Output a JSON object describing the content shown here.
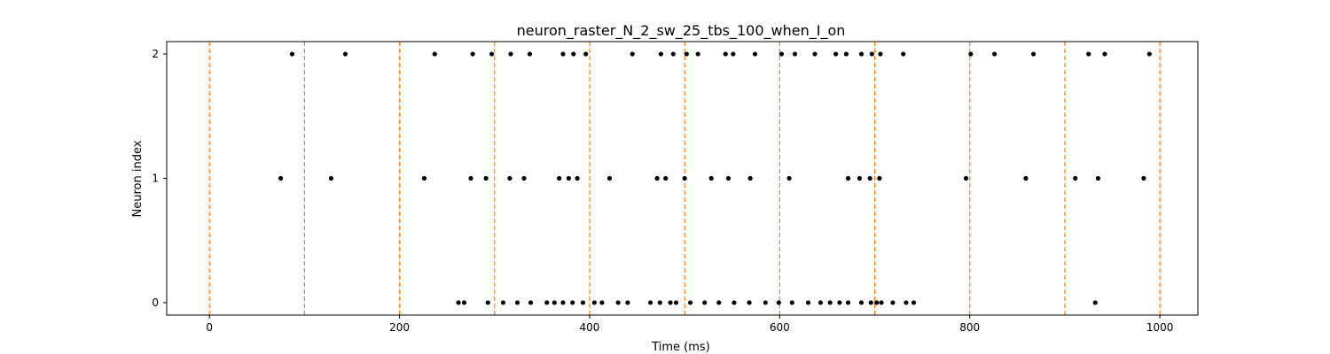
{
  "chart_data": {
    "type": "scatter",
    "title": "neuron_raster_N_2_sw_25_tbs_100_when_I_on",
    "xlabel": "Time (ms)",
    "ylabel": "Neuron index",
    "xlim": [
      -45,
      1040
    ],
    "ylim": [
      -0.1,
      2.1
    ],
    "xticks": [
      0,
      200,
      400,
      600,
      800,
      1000
    ],
    "xtick_labels": [
      "0",
      "200",
      "400",
      "600",
      "800",
      "1000"
    ],
    "yticks": [
      0,
      1,
      2
    ],
    "ytick_labels": [
      "0",
      "1",
      "2"
    ],
    "grid": false,
    "legend": "none",
    "marker_color": "#000000",
    "vline_color": "#ff7f0e",
    "vlines": [
      0,
      100,
      200,
      300,
      400,
      500,
      600,
      700,
      800,
      900,
      1000
    ],
    "series": [
      {
        "neuron": 0,
        "x": [
          262,
          268,
          293,
          309,
          324,
          338,
          355,
          363,
          372,
          382,
          393,
          405,
          413,
          430,
          440,
          464,
          474,
          485,
          491,
          506,
          521,
          536,
          552,
          568,
          585,
          599,
          613,
          630,
          643,
          653,
          663,
          672,
          686,
          696,
          702,
          707,
          719,
          733,
          741,
          932
        ]
      },
      {
        "neuron": 1,
        "x": [
          75,
          128,
          226,
          275,
          291,
          316,
          331,
          368,
          378,
          387,
          421,
          471,
          480,
          500,
          528,
          546,
          569,
          610,
          672,
          684,
          695,
          705,
          796,
          859,
          911,
          935,
          983
        ]
      },
      {
        "neuron": 2,
        "x": [
          87,
          143,
          237,
          277,
          297,
          317,
          337,
          372,
          383,
          396,
          445,
          475,
          488,
          502,
          514,
          543,
          551,
          574,
          602,
          616,
          637,
          659,
          670,
          686,
          697,
          706,
          730,
          801,
          826,
          867,
          925,
          942,
          989
        ]
      }
    ]
  }
}
